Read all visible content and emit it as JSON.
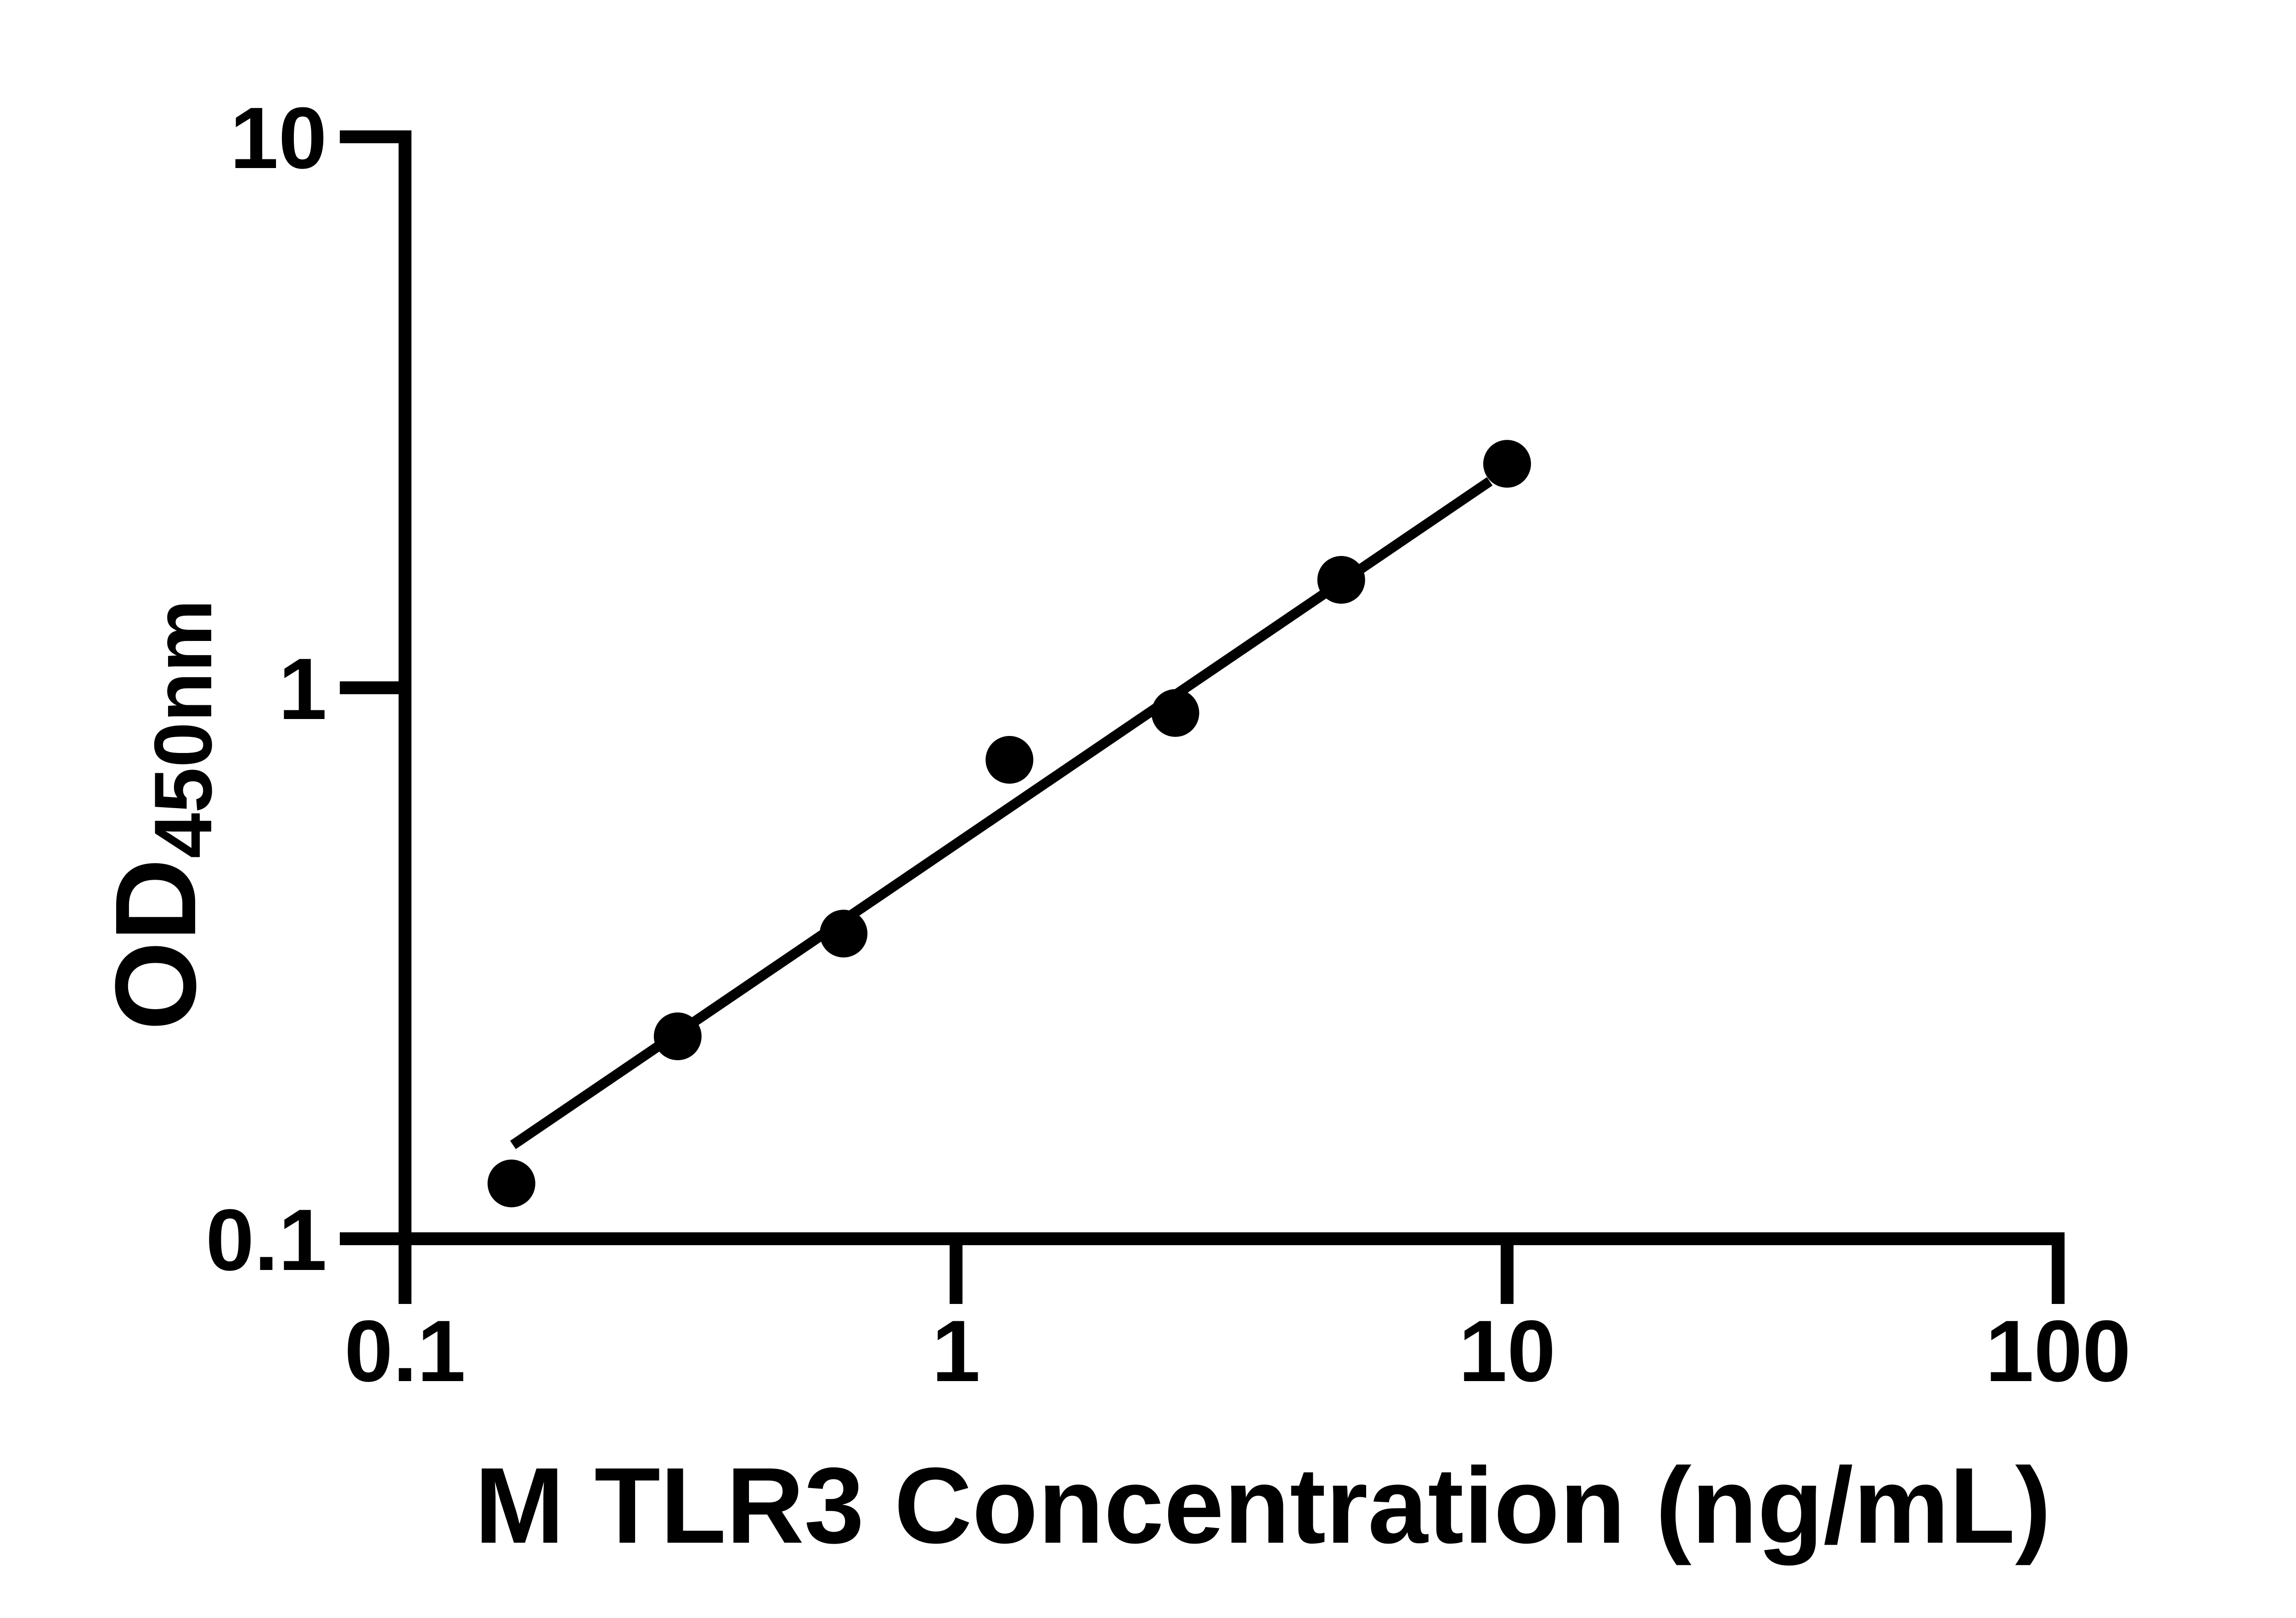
{
  "figure": {
    "background_color": "#ffffff",
    "ink_color": "#000000"
  },
  "chart_data": {
    "type": "scatter",
    "title": "",
    "xlabel": "M TLR3 Concentration (ng/mL)",
    "ylabel_main": "OD",
    "ylabel_sub": "450nm",
    "x_scale": "log",
    "y_scale": "log",
    "xlim": [
      0.1,
      100
    ],
    "ylim": [
      0.1,
      10
    ],
    "x_tick_labels": [
      "0.1",
      "1",
      "10",
      "100"
    ],
    "x_tick_values": [
      0.1,
      1,
      10,
      100
    ],
    "y_tick_labels": [
      "0.1",
      "1",
      "10"
    ],
    "y_tick_values": [
      0.1,
      1,
      10
    ],
    "grid": false,
    "legend": false,
    "marker": "filled-circle",
    "series": [
      {
        "name": "standard-curve-points",
        "points": [
          {
            "x": 0.156,
            "y": 0.126
          },
          {
            "x": 0.3125,
            "y": 0.233
          },
          {
            "x": 0.625,
            "y": 0.358
          },
          {
            "x": 1.25,
            "y": 0.74
          },
          {
            "x": 2.5,
            "y": 0.9
          },
          {
            "x": 5,
            "y": 1.57
          },
          {
            "x": 10,
            "y": 2.55
          }
        ]
      }
    ],
    "trendline": {
      "x1": 0.157,
      "y1": 0.148,
      "x2": 9.3,
      "y2": 2.37
    }
  }
}
